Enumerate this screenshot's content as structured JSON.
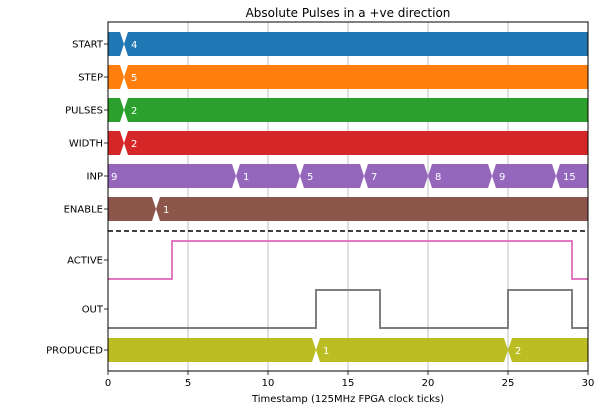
{
  "chart_data": {
    "type": "timing-diagram",
    "title": "Absolute Pulses in a +ve direction",
    "xlabel": "Timestamp (125MHz FPGA clock ticks)",
    "xlim": [
      0,
      30
    ],
    "xticks": [
      0,
      5,
      10,
      15,
      20,
      25,
      30
    ],
    "grid": "vertical",
    "signals": [
      {
        "name": "START",
        "kind": "bus",
        "color": "#1f77b4",
        "segments": [
          {
            "t": 1,
            "label": "4"
          }
        ]
      },
      {
        "name": "STEP",
        "kind": "bus",
        "color": "#ff7f0e",
        "segments": [
          {
            "t": 1,
            "label": "5"
          }
        ]
      },
      {
        "name": "PULSES",
        "kind": "bus",
        "color": "#2ca02c",
        "segments": [
          {
            "t": 1,
            "label": "2"
          }
        ]
      },
      {
        "name": "WIDTH",
        "kind": "bus",
        "color": "#d62728",
        "segments": [
          {
            "t": 1,
            "label": "2"
          }
        ]
      },
      {
        "name": "INP",
        "kind": "bus",
        "color": "#9467bd",
        "segments": [
          {
            "t": 0,
            "label": "9"
          },
          {
            "t": 8,
            "label": "1"
          },
          {
            "t": 12,
            "label": "5"
          },
          {
            "t": 16,
            "label": "7"
          },
          {
            "t": 20,
            "label": "8"
          },
          {
            "t": 24,
            "label": "9"
          },
          {
            "t": 28,
            "label": "15"
          }
        ]
      },
      {
        "name": "ENABLE",
        "kind": "bus",
        "color": "#8c564b",
        "segments": [
          {
            "t": 3,
            "label": "1"
          }
        ]
      },
      {
        "name": "ACTIVE",
        "kind": "bit",
        "color": "#e377c2",
        "initial": 0,
        "transitions": [
          4,
          29
        ]
      },
      {
        "name": "OUT",
        "kind": "bit",
        "color": "#7f7f7f",
        "initial": 0,
        "transitions": [
          13,
          17,
          25,
          29
        ]
      },
      {
        "name": "PRODUCED",
        "kind": "bus",
        "color": "#bcbd22",
        "segments": [
          {
            "t": 0,
            "label": ""
          },
          {
            "t": 13,
            "label": "1"
          },
          {
            "t": 25,
            "label": "2"
          }
        ]
      }
    ]
  }
}
